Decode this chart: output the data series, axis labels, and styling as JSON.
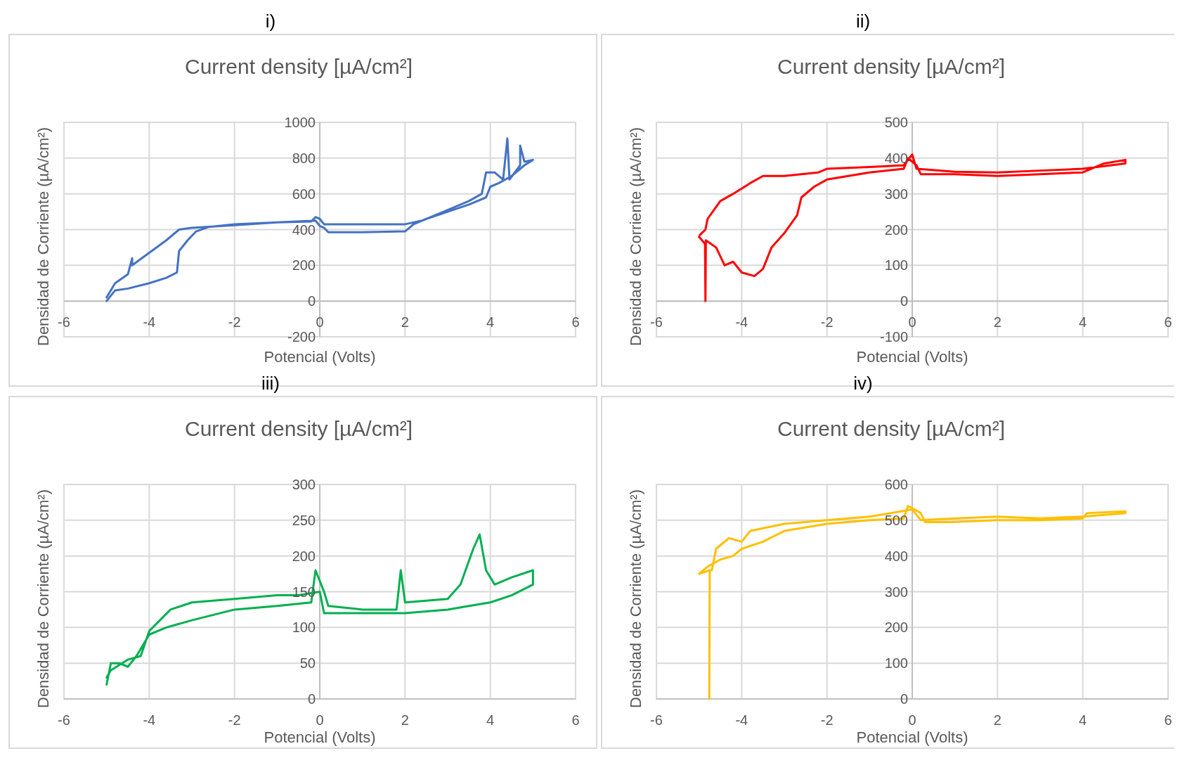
{
  "chart_data": [
    {
      "type": "line",
      "title": "Current density [µA/cm²]",
      "xlabel": "Potencial (Volts)",
      "ylabel": "Densidad de Corriente (µA/cm²)",
      "annotations": [
        "i)"
      ],
      "xlim": [
        -6,
        6
      ],
      "xticks": [
        -6,
        -4,
        -2,
        0,
        2,
        4,
        6
      ],
      "ylim": [
        -200,
        1000
      ],
      "yticks": [
        -200,
        0,
        200,
        400,
        600,
        800,
        1000
      ],
      "grid": true,
      "series": [
        {
          "color": "#4472c4",
          "x": [
            -5,
            -4.8,
            -4.5,
            -4,
            -3.6,
            -3.35,
            -3.3,
            -3.1,
            -2.9,
            -2.6,
            -2,
            -1,
            -0.2,
            -0.1,
            0,
            0.1,
            1,
            2,
            2.4,
            3,
            3.5,
            3.8,
            3.9,
            4.1,
            4.3,
            4.4,
            4.45,
            4.7,
            4.7,
            4.8,
            5,
            4.8,
            4.5,
            4.2,
            4,
            3.9,
            3.5,
            3,
            2.5,
            2.2,
            2,
            1,
            0.2,
            0.1,
            0,
            -0.1,
            -1,
            -2,
            -3,
            -3.3,
            -3.6,
            -4,
            -4.4,
            -4.4,
            -4.5,
            -4.8,
            -5
          ],
          "values": [
            0,
            60,
            70,
            100,
            130,
            160,
            280,
            340,
            390,
            415,
            430,
            440,
            445,
            470,
            460,
            430,
            430,
            430,
            450,
            510,
            560,
            600,
            720,
            720,
            680,
            910,
            680,
            760,
            870,
            780,
            790,
            760,
            700,
            660,
            640,
            580,
            540,
            500,
            460,
            430,
            390,
            385,
            385,
            410,
            420,
            450,
            440,
            425,
            410,
            400,
            340,
            270,
            200,
            240,
            150,
            100,
            20
          ]
        }
      ]
    },
    {
      "type": "line",
      "title": "Current density [µA/cm²]",
      "xlabel": "Potencial (Volts)",
      "ylabel": "Densidad de Corriente (µA/cm²)",
      "annotations": [
        "ii)"
      ],
      "xlim": [
        -6,
        6
      ],
      "xticks": [
        -6,
        -4,
        -2,
        0,
        2,
        4,
        6
      ],
      "ylim": [
        -100,
        500
      ],
      "yticks": [
        -100,
        0,
        100,
        200,
        300,
        400,
        500
      ],
      "grid": true,
      "series": [
        {
          "color": "#ff0000",
          "x": [
            -5,
            -4.86,
            -4.85,
            -4.84,
            -4.6,
            -4.4,
            -4.2,
            -4,
            -3.7,
            -3.5,
            -3.3,
            -3,
            -2.7,
            -2.6,
            -2.3,
            -2,
            -1,
            -0.2,
            -0.1,
            0.1,
            0.2,
            1,
            2,
            3,
            4,
            4.5,
            5,
            5,
            4,
            3,
            2,
            1,
            0.1,
            0,
            -0.2,
            -1,
            -2,
            -2.2,
            -3,
            -3.5,
            -3.8,
            -4.2,
            -4.5,
            -4.8,
            -4.85,
            -4.98
          ],
          "values": [
            180,
            160,
            0,
            170,
            150,
            100,
            110,
            80,
            70,
            90,
            150,
            190,
            240,
            290,
            320,
            340,
            360,
            370,
            400,
            380,
            355,
            355,
            350,
            355,
            360,
            385,
            395,
            385,
            370,
            365,
            360,
            362,
            370,
            410,
            380,
            375,
            370,
            360,
            350,
            350,
            330,
            300,
            280,
            230,
            200,
            185
          ]
        }
      ]
    },
    {
      "type": "line",
      "title": "Current density [µA/cm²]",
      "xlabel": "Potencial (Volts)",
      "ylabel": "Densidad de Corriente (µA/cm²)",
      "annotations": [
        "iii)"
      ],
      "xlim": [
        -6,
        6
      ],
      "xticks": [
        -6,
        -4,
        -2,
        0,
        2,
        4,
        6
      ],
      "ylim": [
        0,
        300
      ],
      "yticks": [
        0,
        50,
        100,
        150,
        200,
        250,
        300
      ],
      "grid": true,
      "series": [
        {
          "color": "#00b050",
          "x": [
            -5,
            -4.9,
            -4.7,
            -4.5,
            -4.3,
            -4,
            -3.6,
            -3,
            -2,
            -1,
            -0.2,
            -0.1,
            0.1,
            0.2,
            1,
            1.8,
            1.9,
            2,
            3,
            3.3,
            3.6,
            3.75,
            3.9,
            4.1,
            4.5,
            5,
            5,
            4.5,
            4,
            3.5,
            3,
            2,
            1,
            0.1,
            0,
            -0.5,
            -1,
            -2,
            -3,
            -3.5,
            -4,
            -4.2,
            -4.5,
            -4.9,
            -5
          ],
          "values": [
            20,
            50,
            50,
            45,
            60,
            90,
            100,
            110,
            125,
            130,
            135,
            180,
            150,
            130,
            125,
            125,
            180,
            135,
            140,
            160,
            210,
            230,
            180,
            160,
            170,
            180,
            160,
            145,
            135,
            130,
            125,
            120,
            120,
            120,
            150,
            145,
            145,
            140,
            135,
            125,
            95,
            60,
            55,
            40,
            30
          ]
        }
      ]
    },
    {
      "type": "line",
      "title": "Current density [µA/cm²]",
      "xlabel": "Potencial (Volts)",
      "ylabel": "Densidad de Corriente (µA/cm²)",
      "annotations": [
        "iv)"
      ],
      "xlim": [
        -6,
        6
      ],
      "xticks": [
        -6,
        -4,
        -2,
        0,
        2,
        4,
        6
      ],
      "ylim": [
        0,
        600
      ],
      "yticks": [
        0,
        100,
        200,
        300,
        400,
        500,
        600
      ],
      "grid": true,
      "series": [
        {
          "color": "#ffc000",
          "x": [
            -4.76,
            -4.75,
            -5,
            -4.8,
            -4.5,
            -4.2,
            -4,
            -3.5,
            -3,
            -2,
            -1,
            -0.2,
            -0.1,
            0.2,
            0.3,
            1,
            2,
            3,
            4,
            4.1,
            5,
            5,
            4,
            3,
            2,
            1,
            0.2,
            0,
            -1,
            -2,
            -3,
            -3.8,
            -4,
            -4.3,
            -4.6,
            -4.7,
            -4.75
          ],
          "values": [
            0,
            360,
            350,
            370,
            390,
            400,
            420,
            440,
            470,
            490,
            500,
            505,
            540,
            520,
            495,
            495,
            500,
            500,
            505,
            520,
            525,
            520,
            510,
            505,
            510,
            505,
            500,
            530,
            510,
            500,
            490,
            470,
            440,
            450,
            420,
            360,
            360
          ]
        }
      ]
    }
  ]
}
